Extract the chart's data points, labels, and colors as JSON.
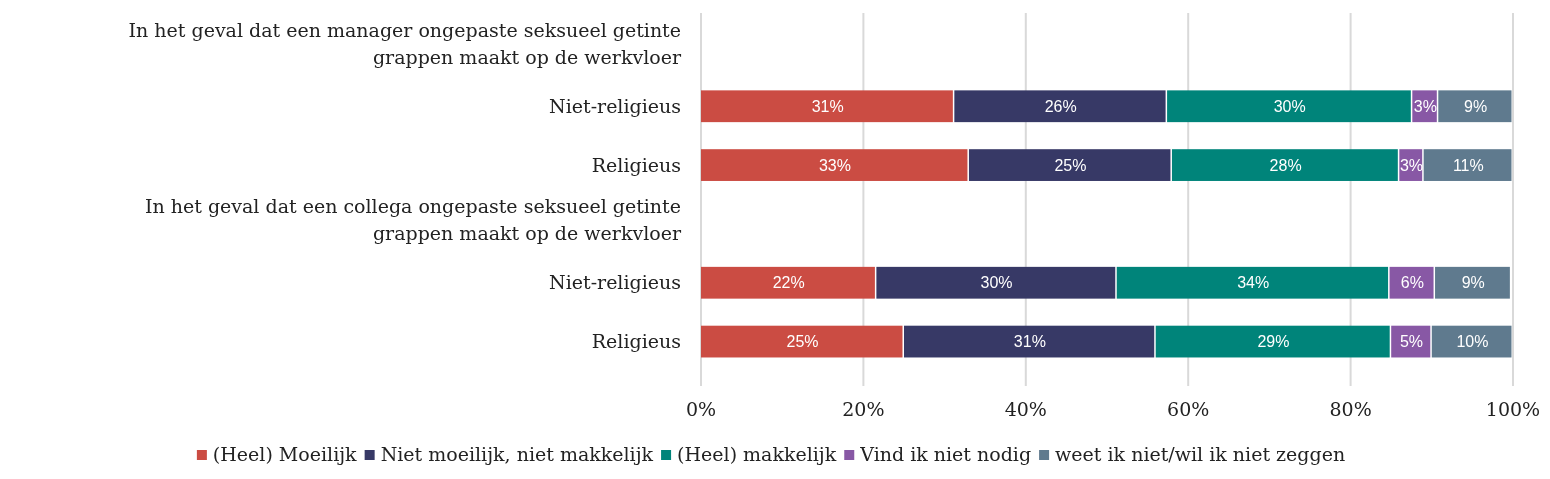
{
  "chart_data": {
    "type": "bar",
    "orientation": "horizontal",
    "stacked": true,
    "categories": [
      "In het geval dat een manager ongepaste seksueel getinte grappen maakt op de werkvloer",
      "Niet-religieus",
      "Religieus",
      "In het geval dat een collega ongepaste seksueel getinte grappen maakt op de werkvloer",
      "Niet-religieus",
      "Religieus"
    ],
    "series": [
      {
        "name": "(Heel) Moeilijk",
        "color": "#cb4c43",
        "values": [
          null,
          31.2,
          33,
          null,
          21.6,
          25
        ],
        "value_labels": [
          null,
          "31%",
          "33%",
          null,
          "22%",
          "25%"
        ]
      },
      {
        "name": "Niet moeilijk, niet makkelijk",
        "color": "#373966",
        "values": [
          null,
          26.2,
          25,
          null,
          29.6,
          31
        ],
        "value_labels": [
          null,
          "26%",
          "25%",
          null,
          "30%",
          "31%"
        ]
      },
      {
        "name": "(Heel) makkelijk",
        "color": "#00847a",
        "values": [
          null,
          30.2,
          28,
          null,
          33.6,
          29
        ],
        "value_labels": [
          null,
          "30%",
          "28%",
          null,
          "34%",
          "29%"
        ]
      },
      {
        "name": "Vind ik niet nodig",
        "color": "#8858a5",
        "values": [
          null,
          3.2,
          3,
          null,
          5.6,
          5
        ],
        "value_labels": [
          null,
          "3%",
          "3%",
          null,
          "6%",
          "5%"
        ]
      },
      {
        "name": "weet ik niet/wil ik niet zeggen",
        "color": "#5f7a8e",
        "values": [
          null,
          9.2,
          11,
          null,
          9.4,
          10
        ],
        "value_labels": [
          null,
          "9%",
          "11%",
          null,
          "9%",
          "10%"
        ]
      }
    ],
    "xlim": [
      0,
      100
    ],
    "xticks": [
      {
        "value": 0,
        "label": "0%"
      },
      {
        "value": 20,
        "label": "20%"
      },
      {
        "value": 40,
        "label": "40%"
      },
      {
        "value": 60,
        "label": "60%"
      },
      {
        "value": 80,
        "label": "80%"
      },
      {
        "value": 100,
        "label": "100%"
      }
    ],
    "grid": "x",
    "legend": "bottom"
  }
}
